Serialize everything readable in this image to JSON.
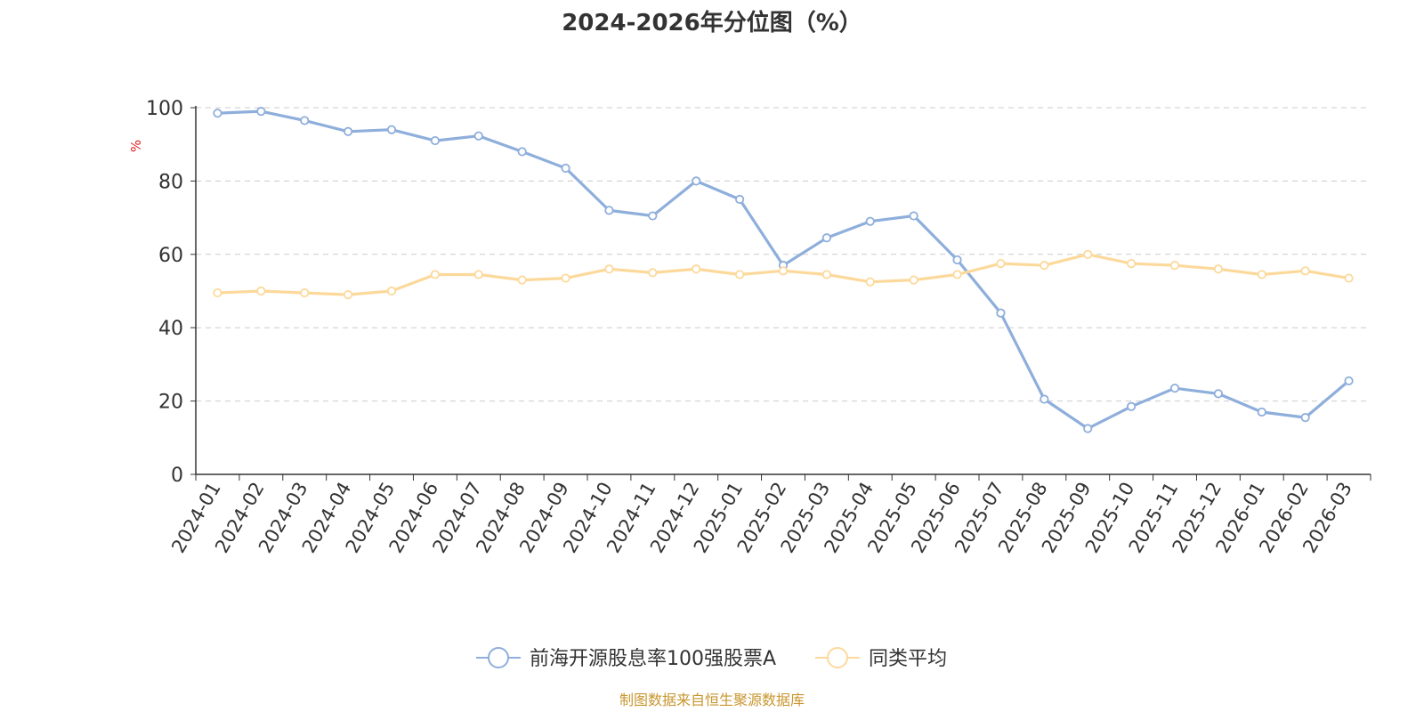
{
  "chart_data": {
    "type": "line",
    "title": "2024-2026年分位图（%）",
    "ylabel": "%",
    "xlabel": "",
    "ylim": [
      0,
      100
    ],
    "yticks": [
      0,
      20,
      40,
      60,
      80,
      100
    ],
    "grid": true,
    "legend_position": "bottom-center",
    "categories": [
      "2024-01",
      "2024-02",
      "2024-03",
      "2024-04",
      "2024-05",
      "2024-06",
      "2024-07",
      "2024-08",
      "2024-09",
      "2024-10",
      "2024-11",
      "2024-12",
      "2025-01",
      "2025-02",
      "2025-03",
      "2025-04",
      "2025-05",
      "2025-06",
      "2025-07",
      "2025-08",
      "2025-09",
      "2025-10",
      "2025-11",
      "2025-12",
      "2026-01",
      "2026-02",
      "2026-03"
    ],
    "series": [
      {
        "name": "前海开源股息率100强股票A",
        "color": "#8eaedb",
        "values": [
          98.5,
          99.0,
          96.5,
          93.5,
          94.0,
          91.0,
          92.3,
          88.0,
          83.5,
          72.0,
          70.5,
          80.0,
          75.0,
          57.0,
          64.5,
          69.0,
          70.5,
          58.5,
          44.0,
          20.5,
          12.5,
          18.5,
          23.5,
          22.0,
          17.0,
          15.5,
          25.5
        ]
      },
      {
        "name": "同类平均",
        "color": "#fcd99b",
        "values": [
          49.5,
          50.0,
          49.5,
          49.0,
          50.0,
          54.5,
          54.5,
          53.0,
          53.5,
          56.0,
          55.0,
          56.0,
          54.5,
          55.5,
          54.5,
          52.5,
          53.0,
          54.5,
          57.5,
          57.0,
          60.0,
          57.5,
          57.0,
          56.0,
          54.5,
          55.5,
          53.5
        ]
      }
    ]
  },
  "source_text": "制图数据来自恒生聚源数据库",
  "colors": {
    "axis": "#333333",
    "grid": "#cccccc",
    "ylabel": "#e02020",
    "source": "#c8962e"
  }
}
